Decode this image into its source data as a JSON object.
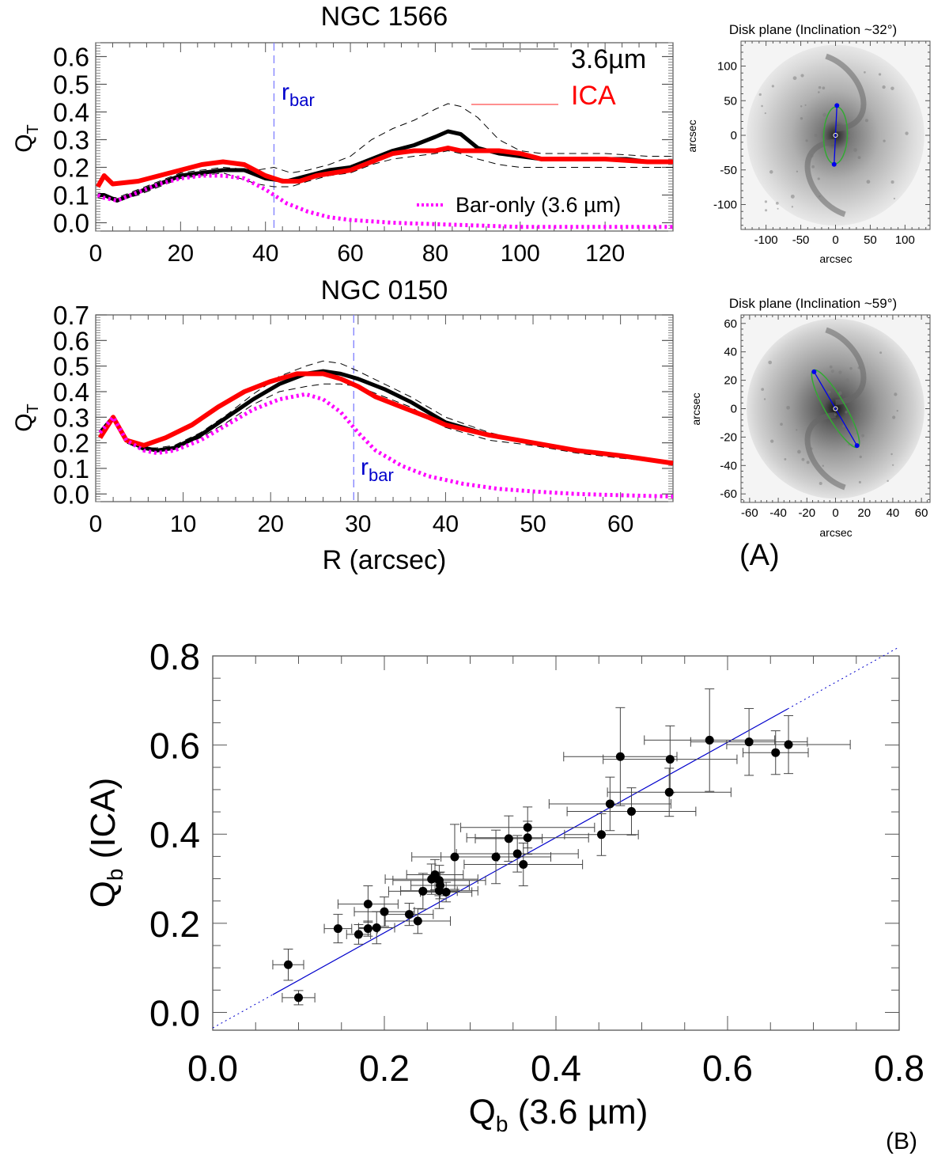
{
  "chart_data": [
    {
      "id": "ngc1566",
      "type": "line",
      "title": "NGC 1566",
      "xlabel": "",
      "ylabel": "Q_T",
      "ylabel_main": "Q",
      "ylabel_sub": "T",
      "xlim": [
        0,
        136
      ],
      "ylim": [
        -0.03,
        0.65
      ],
      "xticks": [
        0,
        20,
        40,
        60,
        80,
        100,
        120
      ],
      "yticks": [
        0.0,
        0.1,
        0.2,
        0.3,
        0.4,
        0.5,
        0.6
      ],
      "ytick_labels": [
        "0.0",
        "0.1",
        "0.2",
        "0.3",
        "0.4",
        "0.5",
        "0.6"
      ],
      "grid": false,
      "legend_position": "top-right",
      "rbar": 42,
      "rbar_label_main": "r",
      "rbar_label_sub": "bar",
      "series": [
        {
          "name": "3.6µm",
          "style": "solid",
          "color": "#000000",
          "x": [
            0.5,
            2,
            5,
            10,
            15,
            20,
            25,
            30,
            35,
            40,
            45,
            50,
            55,
            60,
            65,
            70,
            75,
            80,
            83,
            86,
            90,
            95,
            100,
            105,
            110,
            115,
            120,
            125,
            130,
            136
          ],
          "y": [
            0.1,
            0.1,
            0.08,
            0.11,
            0.14,
            0.17,
            0.18,
            0.19,
            0.19,
            0.16,
            0.15,
            0.17,
            0.19,
            0.2,
            0.23,
            0.26,
            0.28,
            0.31,
            0.33,
            0.32,
            0.27,
            0.25,
            0.24,
            0.23,
            0.23,
            0.23,
            0.23,
            0.23,
            0.22,
            0.22
          ]
        },
        {
          "name": "3.6µm upper error",
          "style": "dashed",
          "color": "#000000",
          "x": [
            0.5,
            5,
            10,
            20,
            30,
            38,
            42,
            46,
            50,
            55,
            60,
            65,
            70,
            75,
            80,
            83,
            86,
            90,
            95,
            100,
            105,
            110,
            120,
            130,
            136
          ],
          "y": [
            0.1,
            0.09,
            0.12,
            0.18,
            0.2,
            0.19,
            0.2,
            0.18,
            0.19,
            0.21,
            0.24,
            0.3,
            0.34,
            0.37,
            0.41,
            0.43,
            0.42,
            0.38,
            0.3,
            0.26,
            0.25,
            0.25,
            0.25,
            0.24,
            0.24
          ]
        },
        {
          "name": "3.6µm lower error",
          "style": "dashed",
          "color": "#000000",
          "x": [
            0.5,
            5,
            10,
            20,
            30,
            38,
            42,
            46,
            50,
            55,
            60,
            65,
            70,
            75,
            80,
            83,
            86,
            90,
            95,
            100,
            105,
            110,
            120,
            130,
            136
          ],
          "y": [
            0.09,
            0.08,
            0.1,
            0.16,
            0.18,
            0.14,
            0.13,
            0.13,
            0.15,
            0.17,
            0.18,
            0.21,
            0.23,
            0.24,
            0.25,
            0.26,
            0.25,
            0.23,
            0.21,
            0.2,
            0.2,
            0.2,
            0.2,
            0.2,
            0.2
          ]
        },
        {
          "name": "ICA",
          "style": "solid",
          "color": "#ff0000",
          "x": [
            0.5,
            2,
            4,
            10,
            15,
            20,
            25,
            30,
            35,
            40,
            44,
            48,
            52,
            56,
            60,
            65,
            70,
            75,
            80,
            83,
            86,
            90,
            95,
            100,
            105,
            110,
            120,
            130,
            136
          ],
          "y": [
            0.13,
            0.17,
            0.14,
            0.15,
            0.17,
            0.19,
            0.21,
            0.22,
            0.21,
            0.17,
            0.15,
            0.15,
            0.17,
            0.18,
            0.19,
            0.22,
            0.25,
            0.26,
            0.26,
            0.27,
            0.26,
            0.26,
            0.26,
            0.25,
            0.23,
            0.23,
            0.23,
            0.22,
            0.22
          ]
        },
        {
          "name": "Bar-only (3.6 µm)",
          "style": "dotted",
          "color": "#ff00ff",
          "x": [
            0.5,
            2,
            5,
            10,
            15,
            20,
            25,
            30,
            35,
            40,
            45,
            50,
            55,
            60,
            70,
            80,
            90,
            100,
            110,
            120,
            130,
            136
          ],
          "y": [
            0.1,
            0.09,
            0.08,
            0.11,
            0.14,
            0.16,
            0.17,
            0.17,
            0.16,
            0.12,
            0.07,
            0.04,
            0.02,
            0.01,
            0.0,
            -0.005,
            -0.01,
            -0.015,
            -0.015,
            -0.015,
            -0.015,
            -0.015
          ]
        }
      ],
      "legend": [
        {
          "label": "3.6µm",
          "color": "#000000",
          "swatch_color": "#9a9a9a"
        },
        {
          "label": "ICA",
          "color": "#ff0000",
          "swatch_color": "#ff9090"
        },
        {
          "label": "Bar-only (3.6 µm)",
          "color": "#000000",
          "swatch_color": "#ff00ff"
        }
      ]
    },
    {
      "id": "ngc0150",
      "type": "line",
      "title": "NGC 0150",
      "xlabel": "R (arcsec)",
      "ylabel": "Q_T",
      "ylabel_main": "Q",
      "ylabel_sub": "T",
      "xlim": [
        0,
        66
      ],
      "ylim": [
        -0.03,
        0.7
      ],
      "xticks": [
        0,
        10,
        20,
        30,
        40,
        50,
        60
      ],
      "yticks": [
        0.0,
        0.1,
        0.2,
        0.3,
        0.4,
        0.5,
        0.6,
        0.7
      ],
      "ytick_labels": [
        "0.0",
        "0.1",
        "0.2",
        "0.3",
        "0.4",
        "0.5",
        "0.6",
        "0.7"
      ],
      "grid": false,
      "rbar": 29.5,
      "rbar_label_main": "r",
      "rbar_label_sub": "bar",
      "series": [
        {
          "name": "3.6µm",
          "style": "solid",
          "color": "#000000",
          "x": [
            0.5,
            2,
            3.5,
            5.5,
            7,
            9,
            12,
            15,
            18,
            21,
            24,
            26,
            28,
            30,
            33,
            36,
            40,
            45,
            50,
            55,
            60,
            66
          ],
          "y": [
            0.24,
            0.3,
            0.21,
            0.18,
            0.17,
            0.18,
            0.23,
            0.3,
            0.37,
            0.43,
            0.47,
            0.48,
            0.47,
            0.45,
            0.41,
            0.36,
            0.28,
            0.23,
            0.2,
            0.17,
            0.15,
            0.12
          ]
        },
        {
          "name": "3.6µm upper error",
          "style": "dashed",
          "color": "#000000",
          "x": [
            0.5,
            2,
            3.5,
            5.5,
            7,
            9,
            12,
            15,
            18,
            21,
            24,
            26,
            28,
            30,
            33,
            36,
            40,
            45,
            50,
            55,
            60,
            66
          ],
          "y": [
            0.25,
            0.3,
            0.21,
            0.18,
            0.18,
            0.19,
            0.24,
            0.31,
            0.39,
            0.46,
            0.5,
            0.52,
            0.51,
            0.48,
            0.43,
            0.38,
            0.3,
            0.24,
            0.2,
            0.17,
            0.15,
            0.12
          ]
        },
        {
          "name": "3.6µm lower error",
          "style": "dashed",
          "color": "#000000",
          "x": [
            0.5,
            2,
            3.5,
            5.5,
            7,
            9,
            12,
            15,
            18,
            21,
            24,
            26,
            28,
            30,
            33,
            36,
            40,
            45,
            50,
            55,
            60,
            66
          ],
          "y": [
            0.23,
            0.29,
            0.2,
            0.17,
            0.17,
            0.18,
            0.22,
            0.28,
            0.35,
            0.4,
            0.42,
            0.43,
            0.43,
            0.42,
            0.38,
            0.34,
            0.26,
            0.21,
            0.19,
            0.16,
            0.14,
            0.12
          ]
        },
        {
          "name": "ICA",
          "style": "solid",
          "color": "#ff0000",
          "x": [
            0.5,
            2,
            3.5,
            5.5,
            8,
            11,
            14,
            17,
            20,
            23,
            26,
            28,
            30,
            32,
            35,
            38,
            40,
            45,
            50,
            55,
            60,
            66
          ],
          "y": [
            0.22,
            0.3,
            0.21,
            0.19,
            0.22,
            0.27,
            0.34,
            0.4,
            0.44,
            0.47,
            0.47,
            0.45,
            0.42,
            0.38,
            0.34,
            0.3,
            0.27,
            0.23,
            0.2,
            0.17,
            0.15,
            0.12
          ]
        },
        {
          "name": "Bar-only (3.6 µm)",
          "style": "dotted",
          "color": "#ff00ff",
          "x": [
            0.5,
            2,
            3.5,
            5.5,
            7,
            9,
            12,
            15,
            18,
            21,
            24,
            26,
            28,
            30,
            32,
            35,
            38,
            42,
            46,
            50,
            55,
            60,
            66
          ],
          "y": [
            0.24,
            0.3,
            0.21,
            0.17,
            0.16,
            0.17,
            0.21,
            0.27,
            0.33,
            0.37,
            0.39,
            0.37,
            0.32,
            0.24,
            0.17,
            0.11,
            0.07,
            0.04,
            0.02,
            0.01,
            0.0,
            -0.005,
            -0.01
          ]
        }
      ]
    },
    {
      "id": "scatter-b",
      "type": "scatter",
      "title": "",
      "xlabel": "Q_b (3.6 µm)",
      "xlabel_main": "Q",
      "xlabel_sub": "b",
      "xlabel_rest": " (3.6 µm)",
      "ylabel": "Q_b (ICA)",
      "ylabel_main": "Q",
      "ylabel_sub": "b",
      "ylabel_rest": " (ICA)",
      "xlim": [
        0.0,
        0.8
      ],
      "ylim": [
        -0.04,
        0.8
      ],
      "xticks": [
        0.0,
        0.2,
        0.4,
        0.6,
        0.8
      ],
      "xtick_labels": [
        "0.0",
        "0.2",
        "0.4",
        "0.6",
        "0.8"
      ],
      "yticks": [
        0.0,
        0.2,
        0.4,
        0.6,
        0.8
      ],
      "ytick_labels": [
        "0.0",
        "0.2",
        "0.4",
        "0.6",
        "0.8"
      ],
      "grid": false,
      "fit_line": {
        "x0": 0.0,
        "y0": -0.035,
        "x1": 0.8,
        "y1": 0.82,
        "solid_from": 0.07,
        "solid_to": 0.67,
        "color": "#0000cc"
      },
      "points": [
        {
          "x": 0.088,
          "y": 0.107,
          "xerr": 0.018,
          "yerr": 0.035
        },
        {
          "x": 0.1,
          "y": 0.033,
          "xerr": 0.019,
          "yerr": 0.016
        },
        {
          "x": 0.146,
          "y": 0.188,
          "xerr": 0.016,
          "yerr": 0.032
        },
        {
          "x": 0.17,
          "y": 0.175,
          "xerr": 0.014,
          "yerr": 0.022
        },
        {
          "x": 0.181,
          "y": 0.188,
          "xerr": 0.011,
          "yerr": 0.017
        },
        {
          "x": 0.181,
          "y": 0.243,
          "xerr": 0.035,
          "yerr": 0.041
        },
        {
          "x": 0.191,
          "y": 0.19,
          "xerr": 0.021,
          "yerr": 0.036
        },
        {
          "x": 0.2,
          "y": 0.226,
          "xerr": 0.035,
          "yerr": 0.033
        },
        {
          "x": 0.229,
          "y": 0.22,
          "xerr": 0.028,
          "yerr": 0.025
        },
        {
          "x": 0.239,
          "y": 0.205,
          "xerr": 0.038,
          "yerr": 0.028
        },
        {
          "x": 0.245,
          "y": 0.272,
          "xerr": 0.04,
          "yerr": 0.04
        },
        {
          "x": 0.255,
          "y": 0.299,
          "xerr": 0.054,
          "yerr": 0.034
        },
        {
          "x": 0.259,
          "y": 0.309,
          "xerr": 0.033,
          "yerr": 0.034
        },
        {
          "x": 0.264,
          "y": 0.273,
          "xerr": 0.045,
          "yerr": 0.04
        },
        {
          "x": 0.264,
          "y": 0.296,
          "xerr": 0.054,
          "yerr": 0.034
        },
        {
          "x": 0.265,
          "y": 0.285,
          "xerr": 0.034,
          "yerr": 0.03
        },
        {
          "x": 0.272,
          "y": 0.27,
          "xerr": 0.03,
          "yerr": 0.022
        },
        {
          "x": 0.282,
          "y": 0.349,
          "xerr": 0.05,
          "yerr": 0.073
        },
        {
          "x": 0.33,
          "y": 0.349,
          "xerr": 0.064,
          "yerr": 0.06
        },
        {
          "x": 0.345,
          "y": 0.39,
          "xerr": 0.039,
          "yerr": 0.051
        },
        {
          "x": 0.355,
          "y": 0.356,
          "xerr": 0.071,
          "yerr": 0.041
        },
        {
          "x": 0.362,
          "y": 0.332,
          "xerr": 0.069,
          "yerr": 0.048
        },
        {
          "x": 0.367,
          "y": 0.415,
          "xerr": 0.078,
          "yerr": 0.046
        },
        {
          "x": 0.367,
          "y": 0.392,
          "xerr": 0.071,
          "yerr": 0.037
        },
        {
          "x": 0.453,
          "y": 0.399,
          "xerr": 0.043,
          "yerr": 0.047
        },
        {
          "x": 0.463,
          "y": 0.468,
          "xerr": 0.071,
          "yerr": 0.06
        },
        {
          "x": 0.475,
          "y": 0.574,
          "xerr": 0.066,
          "yerr": 0.11
        },
        {
          "x": 0.488,
          "y": 0.451,
          "xerr": 0.075,
          "yerr": 0.053
        },
        {
          "x": 0.532,
          "y": 0.494,
          "xerr": 0.072,
          "yerr": 0.054
        },
        {
          "x": 0.533,
          "y": 0.568,
          "xerr": 0.078,
          "yerr": 0.075
        },
        {
          "x": 0.579,
          "y": 0.611,
          "xerr": 0.076,
          "yerr": 0.115
        },
        {
          "x": 0.625,
          "y": 0.607,
          "xerr": 0.068,
          "yerr": 0.075
        },
        {
          "x": 0.656,
          "y": 0.583,
          "xerr": 0.038,
          "yerr": 0.049
        },
        {
          "x": 0.671,
          "y": 0.601,
          "xerr": 0.072,
          "yerr": 0.065
        }
      ]
    }
  ],
  "images": [
    {
      "id": "ngc1566-disk",
      "title": "Disk plane (Inclination ~32°)",
      "xlabel": "arcsec",
      "ylabel": "arcsec",
      "range": [
        -136,
        136
      ],
      "ticks": [
        -100,
        -50,
        0,
        50,
        100
      ],
      "tick_labels": [
        "-100",
        "-50",
        "0",
        "50",
        "100"
      ],
      "bar_end_1": [
        2,
        43
      ],
      "bar_end_2": [
        -2,
        -42
      ],
      "ellipse_semi_major": 41,
      "ellipse_semi_minor": 17,
      "ellipse_angle_deg": 88
    },
    {
      "id": "ngc0150-disk",
      "title": "Disk plane (Inclination ~59°)",
      "xlabel": "arcsec",
      "ylabel": "arcsec",
      "range": [
        -66,
        66
      ],
      "ticks": [
        -60,
        -40,
        -20,
        0,
        20,
        40,
        60
      ],
      "tick_labels": [
        "-60",
        "-40",
        "-20",
        "0",
        "20",
        "40",
        "60"
      ],
      "bar_end_1": [
        -15,
        26
      ],
      "bar_end_2": [
        15,
        -26
      ],
      "ellipse_semi_major": 31,
      "ellipse_semi_minor": 7,
      "ellipse_angle_deg": 120
    }
  ],
  "panel_labels": {
    "a": "(A)",
    "b": "(B)"
  },
  "colors": {
    "black_curve": "#000000",
    "ica": "#ff0000",
    "bar_only": "#ff00ff",
    "rbar_line": "#7f7fff",
    "rbar_text": "#0000cc",
    "fit_line": "#0000cc",
    "ellipse": "#33aa33",
    "bar_axis": "#0000ee"
  }
}
